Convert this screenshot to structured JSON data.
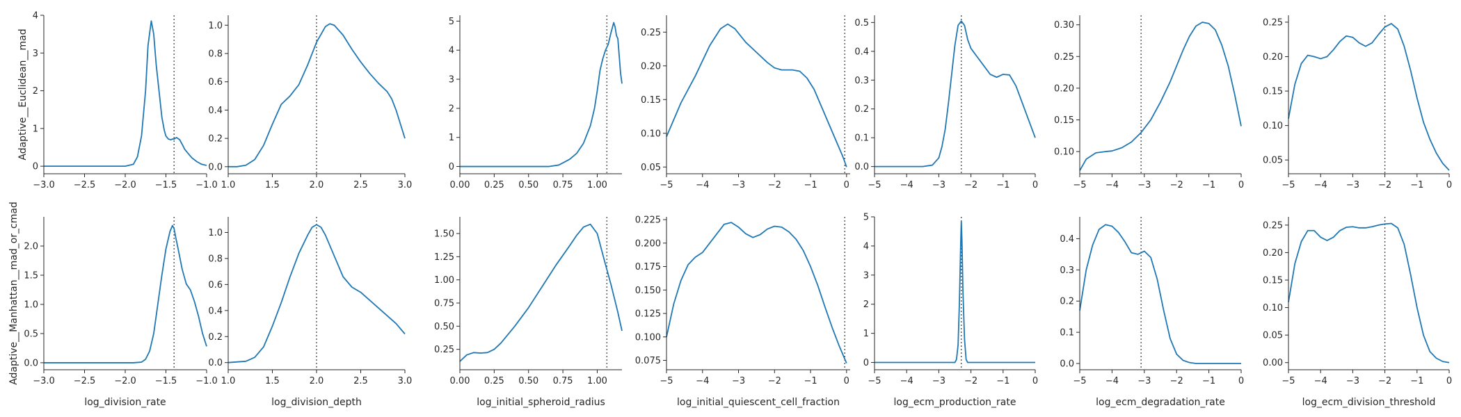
{
  "chart_data": [
    {
      "type": "line",
      "row": 0,
      "col": 0,
      "ylabel": "Adaptive__Euclidean__mad",
      "xlabel": "",
      "xlim": [
        -3.0,
        -1.0
      ],
      "ylim": [
        -0.2,
        4.0
      ],
      "xticks": [
        -3.0,
        -2.5,
        -2.0,
        -1.5,
        -1.0
      ],
      "xtick_labels": [
        "−3.0",
        "−2.5",
        "−2.0",
        "−1.5",
        "−1.0"
      ],
      "yticks": [
        0,
        1,
        2,
        3,
        4
      ],
      "ytick_labels": [
        "0",
        "1",
        "2",
        "3",
        "4"
      ],
      "vline": -1.4,
      "color": "#1f77b4",
      "x": [
        -3.0,
        -2.0,
        -1.9,
        -1.85,
        -1.8,
        -1.75,
        -1.72,
        -1.68,
        -1.65,
        -1.62,
        -1.58,
        -1.55,
        -1.52,
        -1.5,
        -1.47,
        -1.44,
        -1.42,
        -1.4,
        -1.37,
        -1.33,
        -1.3,
        -1.27,
        -1.22,
        -1.18,
        -1.12,
        -1.06,
        -1.0
      ],
      "y": [
        0,
        0,
        0.05,
        0.25,
        0.8,
        2.0,
        3.2,
        3.85,
        3.5,
        2.7,
        1.9,
        1.3,
        0.95,
        0.8,
        0.72,
        0.7,
        0.72,
        0.72,
        0.76,
        0.7,
        0.58,
        0.45,
        0.32,
        0.22,
        0.12,
        0.05,
        0.02
      ]
    },
    {
      "type": "line",
      "row": 0,
      "col": 1,
      "ylabel": "",
      "xlabel": "",
      "xlim": [
        1.0,
        3.0
      ],
      "ylim": [
        -0.05,
        1.07
      ],
      "xticks": [
        1.0,
        1.5,
        2.0,
        2.5,
        3.0
      ],
      "xtick_labels": [
        "1.0",
        "1.5",
        "2.0",
        "2.5",
        "3.0"
      ],
      "yticks": [
        0,
        0.2,
        0.4,
        0.6,
        0.8,
        1.0
      ],
      "ytick_labels": [
        "0.0",
        "0.2",
        "0.4",
        "0.6",
        "0.8",
        "1.0"
      ],
      "vline": 2.0,
      "color": "#1f77b4",
      "x": [
        1.0,
        1.1,
        1.2,
        1.3,
        1.4,
        1.5,
        1.6,
        1.7,
        1.8,
        1.9,
        2.0,
        2.1,
        2.15,
        2.2,
        2.3,
        2.4,
        2.5,
        2.6,
        2.7,
        2.8,
        2.85,
        2.9,
        2.95,
        3.0
      ],
      "y": [
        0,
        0,
        0.01,
        0.05,
        0.15,
        0.3,
        0.44,
        0.5,
        0.58,
        0.72,
        0.88,
        0.99,
        1.01,
        1.0,
        0.93,
        0.83,
        0.74,
        0.66,
        0.59,
        0.53,
        0.48,
        0.4,
        0.3,
        0.2
      ]
    },
    {
      "type": "line",
      "row": 0,
      "col": 2,
      "ylabel": "",
      "xlabel": "",
      "xlim": [
        0.0,
        1.18
      ],
      "ylim": [
        -0.25,
        5.2
      ],
      "xticks": [
        0,
        0.25,
        0.5,
        0.75,
        1.0
      ],
      "xtick_labels": [
        "0.00",
        "0.25",
        "0.50",
        "0.75",
        "1.00"
      ],
      "yticks": [
        0,
        1,
        2,
        3,
        4,
        5
      ],
      "ytick_labels": [
        "0",
        "1",
        "2",
        "3",
        "4",
        "5"
      ],
      "vline": 1.07,
      "color": "#1f77b4",
      "x": [
        0.0,
        0.65,
        0.72,
        0.76,
        0.8,
        0.85,
        0.9,
        0.95,
        0.98,
        1.0,
        1.02,
        1.04,
        1.06,
        1.08,
        1.1,
        1.12,
        1.13,
        1.14,
        1.15,
        1.16,
        1.17,
        1.18
      ],
      "y": [
        0,
        0,
        0.05,
        0.15,
        0.25,
        0.45,
        0.8,
        1.4,
        2.0,
        2.6,
        3.3,
        3.7,
        4.0,
        4.2,
        4.6,
        4.95,
        4.8,
        4.5,
        4.4,
        3.8,
        3.2,
        2.85
      ]
    },
    {
      "type": "line",
      "row": 0,
      "col": 3,
      "ylabel": "",
      "xlabel": "",
      "xlim": [
        -5,
        0.1
      ],
      "ylim": [
        0.04,
        0.275
      ],
      "xticks": [
        -5,
        -4,
        -3,
        -2,
        -1,
        0
      ],
      "xtick_labels": [
        "−5",
        "−4",
        "−3",
        "−2",
        "−1",
        "0"
      ],
      "yticks": [
        0.05,
        0.1,
        0.15,
        0.2,
        0.25
      ],
      "ytick_labels": [
        "0.05",
        "0.10",
        "0.15",
        "0.20",
        "0.25"
      ],
      "vline": -0.05,
      "color": "#1f77b4",
      "x": [
        -5,
        -4.6,
        -4.2,
        -3.8,
        -3.5,
        -3.3,
        -3.1,
        -2.8,
        -2.5,
        -2.2,
        -2.0,
        -1.8,
        -1.5,
        -1.3,
        -1.1,
        -0.9,
        -0.7,
        -0.5,
        -0.3,
        -0.1,
        0
      ],
      "y": [
        0.095,
        0.145,
        0.185,
        0.23,
        0.255,
        0.262,
        0.255,
        0.235,
        0.22,
        0.205,
        0.197,
        0.194,
        0.194,
        0.192,
        0.182,
        0.165,
        0.14,
        0.115,
        0.09,
        0.065,
        0.05
      ]
    },
    {
      "type": "line",
      "row": 0,
      "col": 4,
      "ylabel": "",
      "xlabel": "",
      "xlim": [
        -5,
        0
      ],
      "ylim": [
        -0.025,
        0.525
      ],
      "xticks": [
        -5,
        -4,
        -3,
        -2,
        -1,
        0
      ],
      "xtick_labels": [
        "−5",
        "−4",
        "−3",
        "−2",
        "−1",
        "0"
      ],
      "yticks": [
        0,
        0.1,
        0.2,
        0.3,
        0.4,
        0.5
      ],
      "ytick_labels": [
        "0.0",
        "0.1",
        "0.2",
        "0.3",
        "0.4",
        "0.5"
      ],
      "vline": -2.3,
      "color": "#1f77b4",
      "x": [
        -5,
        -3.5,
        -3.2,
        -3.0,
        -2.9,
        -2.8,
        -2.7,
        -2.6,
        -2.5,
        -2.4,
        -2.3,
        -2.2,
        -2.1,
        -2.0,
        -1.8,
        -1.6,
        -1.4,
        -1.2,
        -1.0,
        -0.8,
        -0.6,
        -0.4,
        -0.2,
        0
      ],
      "y": [
        0,
        0,
        0.005,
        0.03,
        0.07,
        0.13,
        0.22,
        0.32,
        0.42,
        0.49,
        0.505,
        0.49,
        0.44,
        0.41,
        0.38,
        0.35,
        0.32,
        0.31,
        0.32,
        0.318,
        0.28,
        0.22,
        0.16,
        0.1
      ]
    },
    {
      "type": "line",
      "row": 0,
      "col": 5,
      "ylabel": "",
      "xlabel": "",
      "xlim": [
        -5,
        0
      ],
      "ylim": [
        0.065,
        0.315
      ],
      "xticks": [
        -5,
        -4,
        -3,
        -2,
        -1,
        0
      ],
      "xtick_labels": [
        "−5",
        "−4",
        "−3",
        "−2",
        "−1",
        "0"
      ],
      "yticks": [
        0.1,
        0.15,
        0.2,
        0.25,
        0.3
      ],
      "ytick_labels": [
        "0.10",
        "0.15",
        "0.20",
        "0.25",
        "0.30"
      ],
      "vline": -3.1,
      "color": "#1f77b4",
      "x": [
        -5,
        -4.8,
        -4.5,
        -4.2,
        -4.0,
        -3.7,
        -3.4,
        -3.1,
        -2.8,
        -2.5,
        -2.2,
        -2.0,
        -1.8,
        -1.6,
        -1.4,
        -1.2,
        -1.0,
        -0.8,
        -0.6,
        -0.4,
        -0.2,
        0
      ],
      "y": [
        0.07,
        0.088,
        0.098,
        0.1,
        0.101,
        0.106,
        0.115,
        0.13,
        0.15,
        0.178,
        0.21,
        0.235,
        0.26,
        0.282,
        0.298,
        0.304,
        0.302,
        0.292,
        0.268,
        0.235,
        0.19,
        0.14
      ]
    },
    {
      "type": "line",
      "row": 0,
      "col": 6,
      "ylabel": "",
      "xlabel": "",
      "xlim": [
        -5,
        0
      ],
      "ylim": [
        0.03,
        0.26
      ],
      "xticks": [
        -5,
        -4,
        -3,
        -2,
        -1,
        0
      ],
      "xtick_labels": [
        "−5",
        "−4",
        "−3",
        "−2",
        "−1",
        "0"
      ],
      "yticks": [
        0.05,
        0.1,
        0.15,
        0.2,
        0.25
      ],
      "ytick_labels": [
        "0.05",
        "0.10",
        "0.15",
        "0.20",
        "0.25"
      ],
      "vline": -2.0,
      "color": "#1f77b4",
      "x": [
        -5,
        -4.8,
        -4.6,
        -4.4,
        -4.2,
        -4.0,
        -3.8,
        -3.6,
        -3.4,
        -3.2,
        -3.0,
        -2.8,
        -2.6,
        -2.4,
        -2.2,
        -2.0,
        -1.8,
        -1.6,
        -1.4,
        -1.2,
        -1.0,
        -0.8,
        -0.6,
        -0.4,
        -0.2,
        0
      ],
      "y": [
        0.11,
        0.16,
        0.19,
        0.202,
        0.2,
        0.197,
        0.2,
        0.21,
        0.222,
        0.23,
        0.228,
        0.22,
        0.215,
        0.22,
        0.232,
        0.243,
        0.248,
        0.24,
        0.215,
        0.18,
        0.14,
        0.105,
        0.08,
        0.06,
        0.045,
        0.035
      ]
    },
    {
      "type": "line",
      "row": 1,
      "col": 0,
      "ylabel": "Adaptive__Manhattan__mad_or_cmad",
      "xlabel": "log_division_rate",
      "xlim": [
        -3.0,
        -1.0
      ],
      "ylim": [
        -0.12,
        2.5
      ],
      "xticks": [
        -3.0,
        -2.5,
        -2.0,
        -1.5,
        -1.0
      ],
      "xtick_labels": [
        "−3.0",
        "−2.5",
        "−2.0",
        "−1.5",
        "−1.0"
      ],
      "yticks": [
        0,
        0.5,
        1.0,
        1.5,
        2.0
      ],
      "ytick_labels": [
        "0.0",
        "0.5",
        "1.0",
        "1.5",
        "2.0"
      ],
      "vline": -1.4,
      "color": "#1f77b4",
      "x": [
        -3.0,
        -1.9,
        -1.8,
        -1.75,
        -1.7,
        -1.65,
        -1.6,
        -1.55,
        -1.5,
        -1.45,
        -1.42,
        -1.4,
        -1.38,
        -1.35,
        -1.3,
        -1.25,
        -1.2,
        -1.15,
        -1.1,
        -1.05,
        -1.0
      ],
      "y": [
        0,
        0,
        0.01,
        0.06,
        0.2,
        0.5,
        1.0,
        1.5,
        1.95,
        2.25,
        2.35,
        2.3,
        2.15,
        1.95,
        1.6,
        1.35,
        1.25,
        1.05,
        0.8,
        0.5,
        0.28
      ]
    },
    {
      "type": "line",
      "row": 1,
      "col": 1,
      "ylabel": "",
      "xlabel": "log_division_depth",
      "xlim": [
        1.0,
        3.0
      ],
      "ylim": [
        -0.055,
        1.12
      ],
      "xticks": [
        1.0,
        1.5,
        2.0,
        2.5,
        3.0
      ],
      "xtick_labels": [
        "1.0",
        "1.5",
        "2.0",
        "2.5",
        "3.0"
      ],
      "yticks": [
        0,
        0.2,
        0.4,
        0.6,
        0.8,
        1.0
      ],
      "ytick_labels": [
        "0.0",
        "0.2",
        "0.4",
        "0.6",
        "0.8",
        "1.0"
      ],
      "vline": 2.0,
      "color": "#1f77b4",
      "x": [
        1.0,
        1.2,
        1.3,
        1.4,
        1.5,
        1.6,
        1.7,
        1.8,
        1.9,
        1.95,
        2.0,
        2.05,
        2.1,
        2.2,
        2.3,
        2.4,
        2.5,
        2.6,
        2.7,
        2.8,
        2.9,
        3.0
      ],
      "y": [
        0,
        0.01,
        0.04,
        0.12,
        0.28,
        0.46,
        0.66,
        0.84,
        0.98,
        1.04,
        1.06,
        1.04,
        0.98,
        0.82,
        0.66,
        0.58,
        0.54,
        0.48,
        0.42,
        0.36,
        0.3,
        0.22
      ]
    },
    {
      "type": "line",
      "row": 1,
      "col": 2,
      "ylabel": "",
      "xlabel": "log_initial_spheroid_radius",
      "xlim": [
        0.0,
        1.18
      ],
      "ylim": [
        0.03,
        1.68
      ],
      "xticks": [
        0,
        0.25,
        0.5,
        0.75,
        1.0
      ],
      "xtick_labels": [
        "0.00",
        "0.25",
        "0.50",
        "0.75",
        "1.00"
      ],
      "yticks": [
        0.25,
        0.5,
        0.75,
        1.0,
        1.25,
        1.5
      ],
      "ytick_labels": [
        "0.25",
        "0.50",
        "0.75",
        "1.00",
        "1.25",
        "1.50"
      ],
      "vline": 1.07,
      "color": "#1f77b4",
      "x": [
        0.0,
        0.05,
        0.1,
        0.15,
        0.2,
        0.25,
        0.3,
        0.4,
        0.5,
        0.6,
        0.7,
        0.8,
        0.85,
        0.9,
        0.95,
        1.0,
        1.05,
        1.1,
        1.15,
        1.18
      ],
      "y": [
        0.12,
        0.19,
        0.215,
        0.21,
        0.215,
        0.25,
        0.32,
        0.5,
        0.7,
        0.93,
        1.16,
        1.37,
        1.48,
        1.57,
        1.6,
        1.5,
        1.22,
        0.95,
        0.65,
        0.45
      ]
    },
    {
      "type": "line",
      "row": 1,
      "col": 3,
      "ylabel": "",
      "xlabel": "log_initial_quiescent_cell_fraction",
      "xlim": [
        -5,
        0.1
      ],
      "ylim": [
        0.065,
        0.228
      ],
      "xticks": [
        -5,
        -4,
        -3,
        -2,
        -1,
        0
      ],
      "xtick_labels": [
        "−5",
        "−4",
        "−3",
        "−2",
        "−1",
        "0"
      ],
      "yticks": [
        0.075,
        0.1,
        0.125,
        0.15,
        0.175,
        0.2,
        0.225
      ],
      "ytick_labels": [
        "0.075",
        "0.100",
        "0.125",
        "0.150",
        "0.175",
        "0.200",
        "0.225"
      ],
      "vline": -0.05,
      "color": "#1f77b4",
      "x": [
        -5,
        -4.8,
        -4.6,
        -4.4,
        -4.2,
        -4.0,
        -3.8,
        -3.6,
        -3.4,
        -3.2,
        -3.0,
        -2.8,
        -2.6,
        -2.4,
        -2.2,
        -2.0,
        -1.8,
        -1.6,
        -1.4,
        -1.2,
        -1.0,
        -0.8,
        -0.6,
        -0.4,
        -0.2,
        0
      ],
      "y": [
        0.1,
        0.135,
        0.16,
        0.177,
        0.185,
        0.19,
        0.2,
        0.21,
        0.22,
        0.222,
        0.217,
        0.21,
        0.206,
        0.209,
        0.215,
        0.218,
        0.217,
        0.212,
        0.204,
        0.192,
        0.175,
        0.155,
        0.132,
        0.11,
        0.09,
        0.072
      ]
    },
    {
      "type": "line",
      "row": 1,
      "col": 4,
      "ylabel": "",
      "xlabel": "log_ecm_production_rate",
      "xlim": [
        -5,
        0
      ],
      "ylim": [
        -0.25,
        5.0
      ],
      "xticks": [
        -5,
        -4,
        -3,
        -2,
        -1,
        0
      ],
      "xtick_labels": [
        "−5",
        "−4",
        "−3",
        "−2",
        "−1",
        "0"
      ],
      "yticks": [
        0,
        1,
        2,
        3,
        4,
        5
      ],
      "ytick_labels": [
        "0",
        "1",
        "2",
        "3",
        "4",
        "5"
      ],
      "vline": -2.3,
      "color": "#1f77b4",
      "x": [
        -5,
        -2.5,
        -2.45,
        -2.4,
        -2.36,
        -2.32,
        -2.3,
        -2.28,
        -2.25,
        -2.2,
        -2.15,
        -2.1,
        0
      ],
      "y": [
        0,
        0,
        0.1,
        0.6,
        2.0,
        4.0,
        4.85,
        4.2,
        2.5,
        0.8,
        0.1,
        0,
        0
      ]
    },
    {
      "type": "line",
      "row": 1,
      "col": 5,
      "ylabel": "",
      "xlabel": "log_ecm_degradation_rate",
      "xlim": [
        -5,
        0
      ],
      "ylim": [
        -0.02,
        0.47
      ],
      "xticks": [
        -5,
        -4,
        -3,
        -2,
        -1,
        0
      ],
      "xtick_labels": [
        "−5",
        "−4",
        "−3",
        "−2",
        "−1",
        "0"
      ],
      "yticks": [
        0,
        0.1,
        0.2,
        0.3,
        0.4
      ],
      "ytick_labels": [
        "0.0",
        "0.1",
        "0.2",
        "0.3",
        "0.4"
      ],
      "vline": -3.1,
      "color": "#1f77b4",
      "x": [
        -5,
        -4.8,
        -4.6,
        -4.4,
        -4.2,
        -4.0,
        -3.8,
        -3.6,
        -3.4,
        -3.2,
        -3.0,
        -2.8,
        -2.6,
        -2.4,
        -2.2,
        -2.0,
        -1.8,
        -1.6,
        -1.4,
        -1.0,
        -0.5,
        0
      ],
      "y": [
        0.17,
        0.3,
        0.38,
        0.43,
        0.445,
        0.44,
        0.42,
        0.39,
        0.355,
        0.35,
        0.36,
        0.34,
        0.27,
        0.17,
        0.08,
        0.03,
        0.01,
        0.003,
        0,
        0,
        0,
        0
      ]
    },
    {
      "type": "line",
      "row": 1,
      "col": 6,
      "ylabel": "",
      "xlabel": "log_ecm_division_threshold",
      "xlim": [
        -5,
        0
      ],
      "ylim": [
        -0.013,
        0.265
      ],
      "xticks": [
        -5,
        -4,
        -3,
        -2,
        -1,
        0
      ],
      "xtick_labels": [
        "−5",
        "−4",
        "−3",
        "−2",
        "−1",
        "0"
      ],
      "yticks": [
        0,
        0.05,
        0.1,
        0.15,
        0.2,
        0.25
      ],
      "ytick_labels": [
        "0.00",
        "0.05",
        "0.10",
        "0.15",
        "0.20",
        "0.25"
      ],
      "vline": -2.0,
      "color": "#1f77b4",
      "x": [
        -5,
        -4.8,
        -4.6,
        -4.4,
        -4.2,
        -4.0,
        -3.8,
        -3.6,
        -3.4,
        -3.2,
        -3.0,
        -2.8,
        -2.6,
        -2.4,
        -2.2,
        -2.0,
        -1.8,
        -1.6,
        -1.4,
        -1.2,
        -1.0,
        -0.8,
        -0.6,
        -0.4,
        -0.2,
        0
      ],
      "y": [
        0.11,
        0.18,
        0.22,
        0.24,
        0.24,
        0.228,
        0.222,
        0.228,
        0.24,
        0.246,
        0.247,
        0.245,
        0.245,
        0.247,
        0.25,
        0.252,
        0.253,
        0.245,
        0.215,
        0.16,
        0.1,
        0.05,
        0.02,
        0.008,
        0.002,
        0
      ]
    }
  ]
}
